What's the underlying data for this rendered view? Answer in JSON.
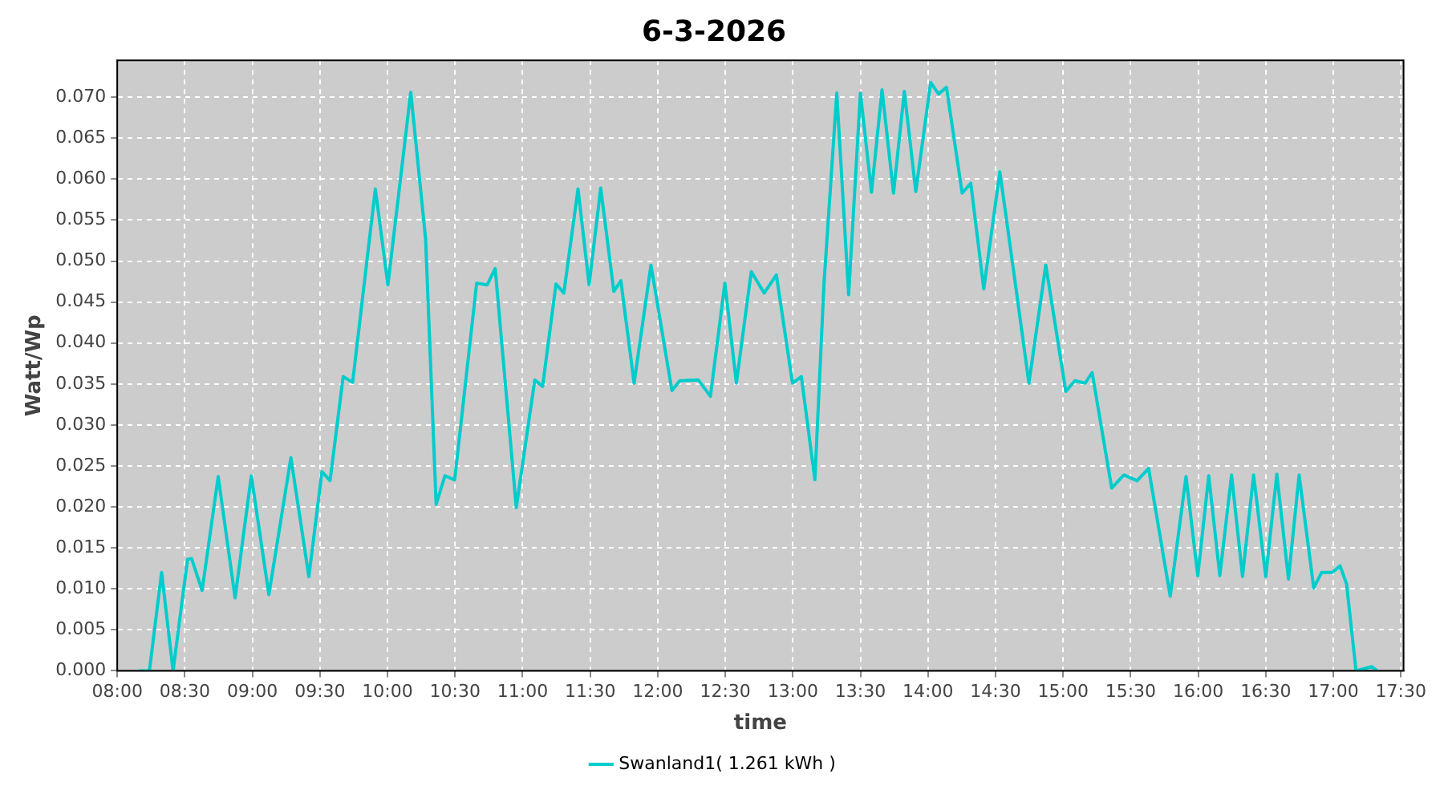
{
  "chart_data": {
    "type": "line",
    "title": "6-3-2026",
    "xlabel": "time",
    "ylabel": "Watt/Wp",
    "legend": "bottom",
    "grid": true,
    "marker": "none",
    "line_style": "solid",
    "xlim": [
      8,
      17.52
    ],
    "xticks": [
      {
        "value": 8,
        "label": "08:00"
      },
      {
        "value": 8.5,
        "label": "08:30"
      },
      {
        "value": 9,
        "label": "09:00"
      },
      {
        "value": 9.5,
        "label": "09:30"
      },
      {
        "value": 10,
        "label": "10:00"
      },
      {
        "value": 10.5,
        "label": "10:30"
      },
      {
        "value": 11,
        "label": "11:00"
      },
      {
        "value": 11.5,
        "label": "11:30"
      },
      {
        "value": 12,
        "label": "12:00"
      },
      {
        "value": 12.5,
        "label": "12:30"
      },
      {
        "value": 13,
        "label": "13:00"
      },
      {
        "value": 13.5,
        "label": "13:30"
      },
      {
        "value": 14,
        "label": "14:00"
      },
      {
        "value": 14.5,
        "label": "14:30"
      },
      {
        "value": 15,
        "label": "15:00"
      },
      {
        "value": 15.5,
        "label": "15:30"
      },
      {
        "value": 16,
        "label": "16:00"
      },
      {
        "value": 16.5,
        "label": "16:30"
      },
      {
        "value": 17,
        "label": "17:00"
      },
      {
        "value": 17.5,
        "label": "17:30"
      }
    ],
    "ylim": [
      0,
      0.0745
    ],
    "yticks": [
      {
        "value": 0,
        "label": "0.000"
      },
      {
        "value": 0.005,
        "label": "0.005"
      },
      {
        "value": 0.01,
        "label": "0.010"
      },
      {
        "value": 0.015,
        "label": "0.015"
      },
      {
        "value": 0.02,
        "label": "0.020"
      },
      {
        "value": 0.025,
        "label": "0.025"
      },
      {
        "value": 0.03,
        "label": "0.030"
      },
      {
        "value": 0.035,
        "label": "0.035"
      },
      {
        "value": 0.04,
        "label": "0.040"
      },
      {
        "value": 0.045,
        "label": "0.045"
      },
      {
        "value": 0.05,
        "label": "0.050"
      },
      {
        "value": 0.055,
        "label": "0.055"
      },
      {
        "value": 0.06,
        "label": "0.060"
      },
      {
        "value": 0.065,
        "label": "0.065"
      },
      {
        "value": 0.07,
        "label": "0.070"
      }
    ],
    "series": [
      {
        "name": "Swanland1( 1.261 kWh )",
        "color": "#00cccc",
        "x": [
          8.16,
          8.238,
          8.328,
          8.413,
          8.52,
          8.55,
          8.628,
          8.747,
          8.872,
          8.992,
          9.122,
          9.285,
          9.418,
          9.515,
          9.575,
          9.672,
          9.742,
          9.91,
          10.003,
          10.172,
          10.282,
          10.36,
          10.425,
          10.497,
          10.66,
          10.738,
          10.797,
          10.875,
          10.953,
          11.09,
          11.148,
          11.247,
          11.305,
          11.41,
          11.492,
          11.578,
          11.675,
          11.727,
          11.825,
          11.95,
          12.105,
          12.163,
          12.3,
          12.39,
          12.497,
          12.582,
          12.692,
          12.788,
          12.878,
          12.997,
          13.063,
          13.163,
          13.23,
          13.325,
          13.413,
          13.5,
          13.582,
          13.66,
          13.745,
          13.825,
          13.91,
          14.02,
          14.078,
          14.137,
          14.253,
          14.317,
          14.413,
          14.532,
          14.648,
          14.747,
          14.872,
          15.02,
          15.087,
          15.163,
          15.215,
          15.36,
          15.45,
          15.547,
          15.633,
          15.793,
          15.91,
          15.997,
          16.078,
          16.16,
          16.247,
          16.328,
          16.41,
          16.5,
          16.582,
          16.668,
          16.747,
          16.855,
          16.913,
          16.992,
          17.05,
          17.098,
          17.168,
          17.285,
          17.325
        ],
        "values": [
          0,
          0,
          0.012,
          0,
          0.0136,
          0.0137,
          0.0098,
          0.0237,
          0.0089,
          0.0238,
          0.0093,
          0.026,
          0.0115,
          0.0243,
          0.0232,
          0.0359,
          0.0352,
          0.0588,
          0.0471,
          0.0706,
          0.0527,
          0.0203,
          0.0238,
          0.0233,
          0.0473,
          0.0471,
          0.0491,
          0.0345,
          0.0199,
          0.0355,
          0.0347,
          0.0472,
          0.0461,
          0.0588,
          0.0471,
          0.0589,
          0.0463,
          0.0476,
          0.0351,
          0.0495,
          0.0342,
          0.0354,
          0.0355,
          0.0335,
          0.0473,
          0.0351,
          0.0487,
          0.0461,
          0.0483,
          0.0351,
          0.0359,
          0.0233,
          0.0471,
          0.0705,
          0.0459,
          0.0705,
          0.0584,
          0.0709,
          0.0583,
          0.0707,
          0.0585,
          0.0718,
          0.0704,
          0.0712,
          0.0583,
          0.0595,
          0.0466,
          0.0609,
          0.0471,
          0.0351,
          0.0495,
          0.0341,
          0.0354,
          0.0351,
          0.0364,
          0.0223,
          0.0239,
          0.0232,
          0.0247,
          0.0091,
          0.0237,
          0.0116,
          0.0238,
          0.0116,
          0.0239,
          0.0115,
          0.0239,
          0.0115,
          0.024,
          0.0112,
          0.0239,
          0.0101,
          0.012,
          0.012,
          0.0128,
          0.0106,
          0,
          0.0005,
          0
        ]
      }
    ]
  }
}
